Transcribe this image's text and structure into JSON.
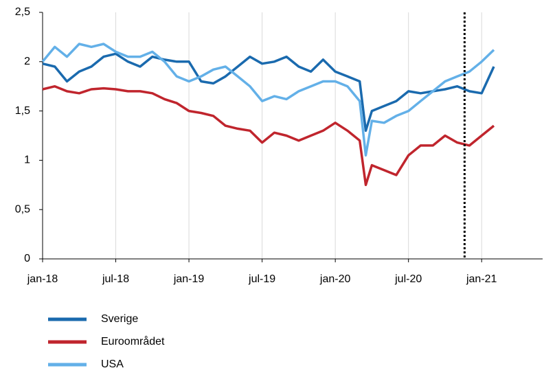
{
  "chart_data": {
    "type": "line",
    "x": [
      0,
      1,
      2,
      3,
      4,
      5,
      6,
      7,
      8,
      9,
      10,
      11,
      12,
      13,
      14,
      15,
      16,
      17,
      18,
      19,
      20,
      21,
      22,
      23,
      24,
      25,
      26,
      26.5,
      27,
      28,
      29,
      30,
      31,
      32,
      33,
      34,
      35,
      36,
      37
    ],
    "xlim": [
      0,
      41
    ],
    "xticks": [
      {
        "value": 0,
        "label": "jan-18"
      },
      {
        "value": 6,
        "label": "jul-18"
      },
      {
        "value": 12,
        "label": "jan-19"
      },
      {
        "value": 18,
        "label": "jul-19"
      },
      {
        "value": 24,
        "label": "jan-20"
      },
      {
        "value": 30,
        "label": "jul-20"
      },
      {
        "value": 36,
        "label": "jan-21"
      }
    ],
    "ylim": [
      0,
      2.5
    ],
    "yticks": [
      0,
      {
        "value": 0.5,
        "label": "0,5"
      },
      1,
      {
        "value": 1.5,
        "label": "1,5"
      },
      2,
      {
        "value": 2.5,
        "label": "2,5"
      }
    ],
    "grid": true,
    "vline": 34.6,
    "series": [
      {
        "name": "Sverige",
        "color": "#1a6aae",
        "values": [
          1.98,
          1.95,
          1.8,
          1.9,
          1.95,
          2.05,
          2.08,
          2.0,
          1.95,
          2.05,
          2.02,
          2.0,
          2.0,
          1.8,
          1.78,
          1.85,
          1.95,
          2.05,
          1.98,
          2.0,
          2.05,
          1.95,
          1.9,
          2.02,
          1.9,
          1.85,
          1.8,
          1.3,
          1.5,
          1.55,
          1.6,
          1.7,
          1.68,
          1.7,
          1.72,
          1.75,
          1.7,
          1.68,
          1.95
        ]
      },
      {
        "name": "Euroområdet",
        "color": "#c0252d",
        "values": [
          1.72,
          1.75,
          1.7,
          1.68,
          1.72,
          1.73,
          1.72,
          1.7,
          1.7,
          1.68,
          1.62,
          1.58,
          1.5,
          1.48,
          1.45,
          1.35,
          1.32,
          1.3,
          1.18,
          1.28,
          1.25,
          1.2,
          1.25,
          1.3,
          1.38,
          1.3,
          1.2,
          0.75,
          0.95,
          0.9,
          0.85,
          1.05,
          1.15,
          1.15,
          1.25,
          1.18,
          1.15,
          1.25,
          1.35
        ]
      },
      {
        "name": "USA",
        "color": "#63b0e8",
        "values": [
          2.0,
          2.15,
          2.05,
          2.18,
          2.15,
          2.18,
          2.1,
          2.05,
          2.05,
          2.1,
          2.0,
          1.85,
          1.8,
          1.85,
          1.92,
          1.95,
          1.85,
          1.75,
          1.6,
          1.65,
          1.62,
          1.7,
          1.75,
          1.8,
          1.8,
          1.75,
          1.6,
          1.05,
          1.4,
          1.38,
          1.45,
          1.5,
          1.6,
          1.7,
          1.8,
          1.85,
          1.9,
          2.0,
          2.12
        ]
      }
    ]
  }
}
